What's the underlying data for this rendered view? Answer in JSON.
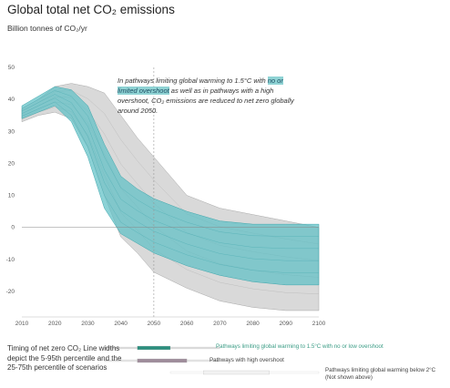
{
  "title": "Global total net CO₂ emissions",
  "y_unit": "Billion tonnes of CO₂/yr",
  "annotation": {
    "before": "In pathways limiting global warming to 1.5°C with ",
    "highlight": "no or limited overshoot",
    "after": " as well as in pathways with a high overshoot, CO₂ emissions are reduced to net zero globally around 2050."
  },
  "timing_caption": "Timing of net zero CO₂ Line widths depict the 5-95th percentile and the 25-75th percentile of scenarios",
  "legend": {
    "no_overshoot": "Pathways limiting global warming to 1.5°C with no or low overshoot",
    "high_overshoot": "Pathways with high overshoot",
    "below_2c_line1": "Pathways limiting global warming below 2°C",
    "below_2c_line2": "(Not shown above)"
  },
  "colors": {
    "no_overshoot": "#5bbfc4",
    "no_overshoot_dark": "#2e8f7f",
    "high_overshoot": "#c9c9c9",
    "high_overshoot_bar": "#9e8c9a",
    "below_2c_bar": "#f2f2f2"
  },
  "chart_data": {
    "type": "area",
    "x_ticks": [
      2010,
      2020,
      2030,
      2040,
      2050,
      2060,
      2070,
      2080,
      2090,
      2100
    ],
    "y_ticks": [
      50,
      40,
      30,
      20,
      10,
      0,
      -10,
      -20
    ],
    "ylim": [
      -28,
      50
    ],
    "xlim": [
      2010,
      2100
    ],
    "grid": false,
    "zero_line": true,
    "series": [
      {
        "name": "Pathways with high overshoot",
        "x": [
          2010,
          2015,
          2020,
          2025,
          2030,
          2035,
          2040,
          2045,
          2050,
          2060,
          2070,
          2080,
          2090,
          2100
        ],
        "lower": [
          33,
          35,
          36,
          34,
          25,
          10,
          -3,
          -8,
          -14,
          -19,
          -23,
          -25,
          -26,
          -26
        ],
        "upper": [
          37,
          40,
          44,
          45,
          44,
          42,
          35,
          28,
          22,
          10,
          6,
          4,
          2,
          0
        ]
      },
      {
        "name": "Pathways limiting global warming to 1.5°C with no or low overshoot",
        "x": [
          2010,
          2015,
          2020,
          2025,
          2030,
          2035,
          2040,
          2045,
          2050,
          2060,
          2070,
          2080,
          2090,
          2100
        ],
        "lower": [
          34,
          36,
          38,
          33,
          22,
          6,
          -2,
          -5,
          -8,
          -12,
          -15,
          -17,
          -18,
          -18
        ],
        "upper": [
          38,
          41,
          44,
          43,
          38,
          26,
          16,
          12,
          9,
          5,
          2,
          1,
          1,
          1
        ]
      }
    ],
    "timing_bars": [
      {
        "series": "no_overshoot",
        "x_25_75": [
          2045,
          2055
        ],
        "x_5_95": [
          2035,
          2070
        ]
      },
      {
        "series": "high_overshoot",
        "x_25_75": [
          2045,
          2060
        ],
        "x_5_95": [
          2035,
          2070
        ]
      },
      {
        "series": "below_2c",
        "x_25_75": [
          2065,
          2085
        ],
        "x_5_95": [
          2055,
          2100
        ]
      }
    ]
  }
}
